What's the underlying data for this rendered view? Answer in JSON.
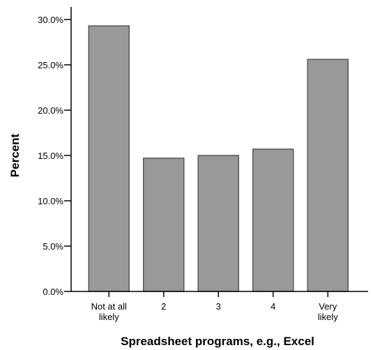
{
  "chart_data": {
    "type": "bar",
    "categories": [
      [
        "Not at all",
        "likely"
      ],
      [
        "2"
      ],
      [
        "3"
      ],
      [
        "4"
      ],
      [
        "Very",
        "likely"
      ]
    ],
    "values": [
      29.3,
      14.7,
      15.0,
      15.7,
      25.6
    ],
    "xlabel": "Spreadsheet programs, e.g., Excel",
    "ylabel": "Percent",
    "ylim": [
      0,
      30
    ],
    "yticks": [
      "0.0%",
      "5.0%",
      "10.0%",
      "15.0%",
      "20.0%",
      "25.0%",
      "30.0%"
    ],
    "grid": false,
    "colors": {
      "bar_fill": "#999999",
      "bar_stroke": "#555555",
      "axis": "#000000"
    }
  }
}
